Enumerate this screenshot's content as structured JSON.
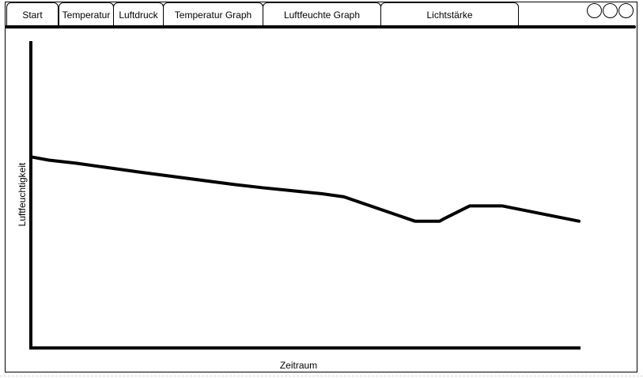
{
  "nav": {
    "tabs": [
      {
        "label": "Start"
      },
      {
        "label": "Temperatur"
      },
      {
        "label": "Luftdruck"
      },
      {
        "label": "Temperatur Graph"
      },
      {
        "label": "Luftfeuchte Graph"
      },
      {
        "label": "Lichtstärke"
      }
    ]
  },
  "window_controls": [
    "circle-icon",
    "circle-icon",
    "circle-icon"
  ],
  "chart_data": {
    "type": "line",
    "xlabel": "Zeitraum",
    "ylabel": "Luftfeuchtigkeit",
    "grid": false,
    "legend": "none",
    "xlim": [
      0,
      100
    ],
    "ylim": [
      0,
      100
    ],
    "x": [
      0,
      3,
      8,
      20,
      37,
      42,
      53,
      57,
      70,
      74.5,
      75.5,
      80,
      86,
      100
    ],
    "values": [
      62,
      61,
      60,
      57,
      53,
      52,
      50,
      49,
      41,
      41,
      42,
      46,
      46,
      41
    ]
  }
}
